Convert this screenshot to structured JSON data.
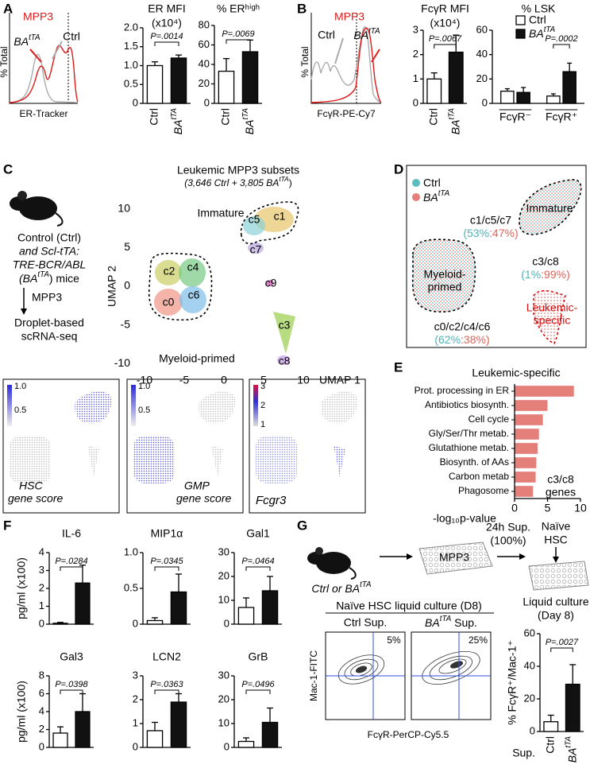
{
  "chart_data": [
    {
      "type": "bar",
      "title": "ER MFI",
      "subtitle": "(x10⁴)",
      "categories": [
        "Ctrl",
        "BAtTA"
      ],
      "values": [
        1.0,
        1.2
      ],
      "errors": [
        0.1,
        0.08
      ],
      "colors": [
        "#ffffff",
        "#111111"
      ],
      "ylim": [
        0,
        2
      ],
      "yticks": [
        0,
        0.5,
        {
          "value": 1,
          "label": "1.0"
        },
        1.5,
        {
          "value": 2,
          "label": "2.0"
        }
      ],
      "annotation": "P=.0014"
    },
    {
      "type": "bar",
      "title": "% ERʰⁱᵍʰ",
      "categories": [
        "Ctrl",
        "BAtTA"
      ],
      "values": [
        33,
        53
      ],
      "errors": [
        13,
        12
      ],
      "colors": [
        "#ffffff",
        "#111111"
      ],
      "ylim": [
        0,
        80
      ],
      "yticks": [
        0,
        20,
        40,
        60,
        80
      ],
      "annotation": "P=.0069"
    },
    {
      "type": "bar",
      "title": "FcγR MFI",
      "subtitle": "(x10⁴)",
      "categories": [
        "Ctrl",
        "BAtTA"
      ],
      "values": [
        1.0,
        2.1
      ],
      "errors": [
        0.25,
        0.7
      ],
      "colors": [
        "#ffffff",
        "#111111"
      ],
      "ylim": [
        0,
        3
      ],
      "yticks": [
        0,
        1,
        2,
        3
      ],
      "annotation": "P=.0067"
    },
    {
      "type": "grouped",
      "title": "% LSK",
      "categories": [
        "FcγR⁻",
        "FcγR⁺"
      ],
      "series": [
        {
          "name": "Ctrl",
          "color": "#ffffff",
          "values": [
            10,
            6
          ],
          "errors": [
            2,
            1.8
          ]
        },
        {
          "name": "BAtTA",
          "color": "#111111",
          "values": [
            9,
            26
          ],
          "errors": [
            4,
            7
          ]
        }
      ],
      "ylim": [
        0,
        60
      ],
      "yticks": [
        0,
        20,
        40,
        60
      ],
      "annotations": [
        null,
        "P=.0002"
      ]
    },
    {
      "type": "scatter",
      "title": "Leukemic MPP3 subsets",
      "subtitle": "(3,646 Ctrl + 3,805 BAtTA)",
      "xlabel": "UMAP 1",
      "ylabel": "UMAP 2",
      "xlim": [
        -11,
        11
      ],
      "ylim": [
        -11,
        11
      ],
      "xticks": [
        -10,
        -5,
        0,
        5,
        10
      ],
      "yticks": [
        -10,
        -5,
        0,
        5,
        10
      ]
    },
    {
      "type": "barh",
      "title": "Leukemic-specific",
      "categories": [
        "Prot. processing in ER",
        "Antibiotics biosynth.",
        "Cell cycle",
        "Gly/Ser/Thr metab.",
        "Glutathione metab.",
        "Biosynth. of AAs",
        "Carbon metab",
        "Phagosome"
      ],
      "values": [
        9.0,
        5.0,
        4.3,
        3.7,
        3.5,
        3.3,
        3.2,
        2.8
      ],
      "color": "#e57f7a",
      "xlim": [
        0,
        10
      ],
      "xticks": [
        0,
        5,
        10
      ],
      "xlabel": "-log₁₀p-value",
      "note": [
        "c3/c8",
        "genes"
      ]
    },
    {
      "type": "bar",
      "title": "IL-6",
      "ylabel": "pg/ml (x100)",
      "categories": [
        null,
        null
      ],
      "values": [
        0.05,
        2.3
      ],
      "errors": [
        0.05,
        1.0
      ],
      "colors": [
        "#ffffff",
        "#111111"
      ],
      "ylim": [
        0,
        4
      ],
      "yticks": [
        0,
        1,
        2,
        3,
        4
      ],
      "annotation": "P=.0284"
    },
    {
      "type": "bar",
      "title": "MIP1α",
      "categories": [
        null,
        null
      ],
      "values": [
        0.05,
        0.45
      ],
      "errors": [
        0.04,
        0.25
      ],
      "colors": [
        "#ffffff",
        "#111111"
      ],
      "ylim": [
        0,
        1
      ],
      "yticks": [
        0,
        0.5,
        {
          "value": 1,
          "label": "1.0"
        }
      ],
      "annotation": "P=.0345"
    },
    {
      "type": "bar",
      "title": "Gal1",
      "categories": [
        null,
        null
      ],
      "values": [
        7,
        14
      ],
      "errors": [
        4,
        6
      ],
      "colors": [
        "#ffffff",
        "#111111"
      ],
      "ylim": [
        0,
        30
      ],
      "yticks": [
        0,
        10,
        20,
        30
      ],
      "annotation": "P=.0464"
    },
    {
      "type": "bar",
      "title": "Gal3",
      "ylabel": "pg/ml (x100)",
      "categories": [
        null,
        null
      ],
      "values": [
        1.6,
        4.0
      ],
      "errors": [
        0.7,
        2.0
      ],
      "colors": [
        "#ffffff",
        "#111111"
      ],
      "ylim": [
        0,
        8
      ],
      "yticks": [
        0,
        2,
        4,
        6,
        8
      ],
      "annotation": "P=.0398"
    },
    {
      "type": "bar",
      "title": "LCN2",
      "categories": [
        null,
        null
      ],
      "values": [
        0.7,
        1.9
      ],
      "errors": [
        0.35,
        0.35
      ],
      "colors": [
        "#ffffff",
        "#111111"
      ],
      "ylim": [
        0,
        3
      ],
      "yticks": [
        0,
        1,
        2,
        3
      ],
      "annotation": "P=.0363"
    },
    {
      "type": "bar",
      "title": "GrB",
      "categories": [
        null,
        null
      ],
      "values": [
        2.5,
        10.5
      ],
      "errors": [
        1.5,
        6
      ],
      "colors": [
        "#ffffff",
        "#111111"
      ],
      "ylim": [
        0,
        30
      ],
      "yticks": [
        0,
        10,
        20,
        30
      ],
      "annotation": "P=.0496"
    },
    {
      "type": "bar",
      "ylabel": "% FcγR⁺/Mac-1⁺",
      "xlabel": "Sup.",
      "categories": [
        "Ctrl",
        "BAtTA"
      ],
      "values": [
        6,
        29
      ],
      "errors": [
        4,
        12
      ],
      "colors": [
        "#ffffff",
        "#111111"
      ],
      "ylim": [
        0,
        60
      ],
      "yticks": [
        0,
        20,
        40,
        60
      ],
      "annotation": "P=.0027"
    }
  ],
  "panels": {
    "A": {
      "label": "A",
      "hist_title": "MPP3",
      "mutant": "BAtTA",
      "control": "Ctrl",
      "ylabel": "% Total",
      "xlabel": "ER-Tracker"
    },
    "B": {
      "label": "B",
      "hist_title": "MPP3",
      "mutant": "BAtTA",
      "control": "Ctrl",
      "ylabel": "% Total",
      "xlabel": "FcγR-PE-Cy7"
    },
    "C": {
      "label": "C",
      "design": [
        "Control (Ctrl)",
        "and Scl-tTA:",
        "TRE-BCR/ABL",
        "(BAtTA) mice"
      ],
      "cell": "MPP3",
      "method": [
        "Droplet-based",
        "scRNA-seq"
      ],
      "clusters": [
        "c1",
        "c5",
        "c7",
        "c9",
        "c2",
        "c4",
        "c0",
        "c6",
        "c3",
        "c8"
      ],
      "immature": "Immature",
      "myeloid": "Myeloid-primed",
      "scores": [
        {
          "name": "HSC",
          "sub": "gene score",
          "scale": [
            "1.0",
            "0.5"
          ]
        },
        {
          "name": "GMP",
          "sub": "gene score",
          "scale": [
            "1.0",
            "0.5"
          ]
        },
        {
          "name": "Fcgr3",
          "scale": [
            "3",
            "2",
            "1"
          ]
        }
      ]
    },
    "D": {
      "label": "D",
      "legend": [
        "Ctrl",
        "BAtTA"
      ],
      "immature": {
        "name": "Immature",
        "clusters": "c1/c5/c7",
        "ratio": [
          "(53%",
          ":47%)"
        ]
      },
      "leukemic": {
        "name": [
          "Leukemic-",
          "specific"
        ],
        "clusters": "c3/c8",
        "ratio": [
          "(1%",
          ":99%)"
        ]
      },
      "myeloid": {
        "name": [
          "Myeloid-",
          "primed"
        ],
        "clusters": "c0/c2/c4/c6",
        "ratio": [
          "(62%",
          ":38%)"
        ]
      }
    },
    "E": {
      "label": "E"
    },
    "F": {
      "label": "F"
    },
    "G": {
      "label": "G",
      "donor": "Ctrl or BAtTA",
      "plate": "MPP3",
      "transfer": [
        "24h Sup.",
        "(100%)"
      ],
      "target": [
        "Naïve",
        "HSC"
      ],
      "culture": [
        "Liquid culture",
        "(Day 8)"
      ],
      "flow_title": "Naïve HSC liquid culture (D8)",
      "flow": [
        {
          "name": "Ctrl Sup.",
          "pct": "5%"
        },
        {
          "name": "BAtTA Sup.",
          "pct": "25%"
        }
      ],
      "ylabel": "Mac-1-FITC",
      "xlabel": "FcγR-PerCP-Cy5.5"
    }
  }
}
